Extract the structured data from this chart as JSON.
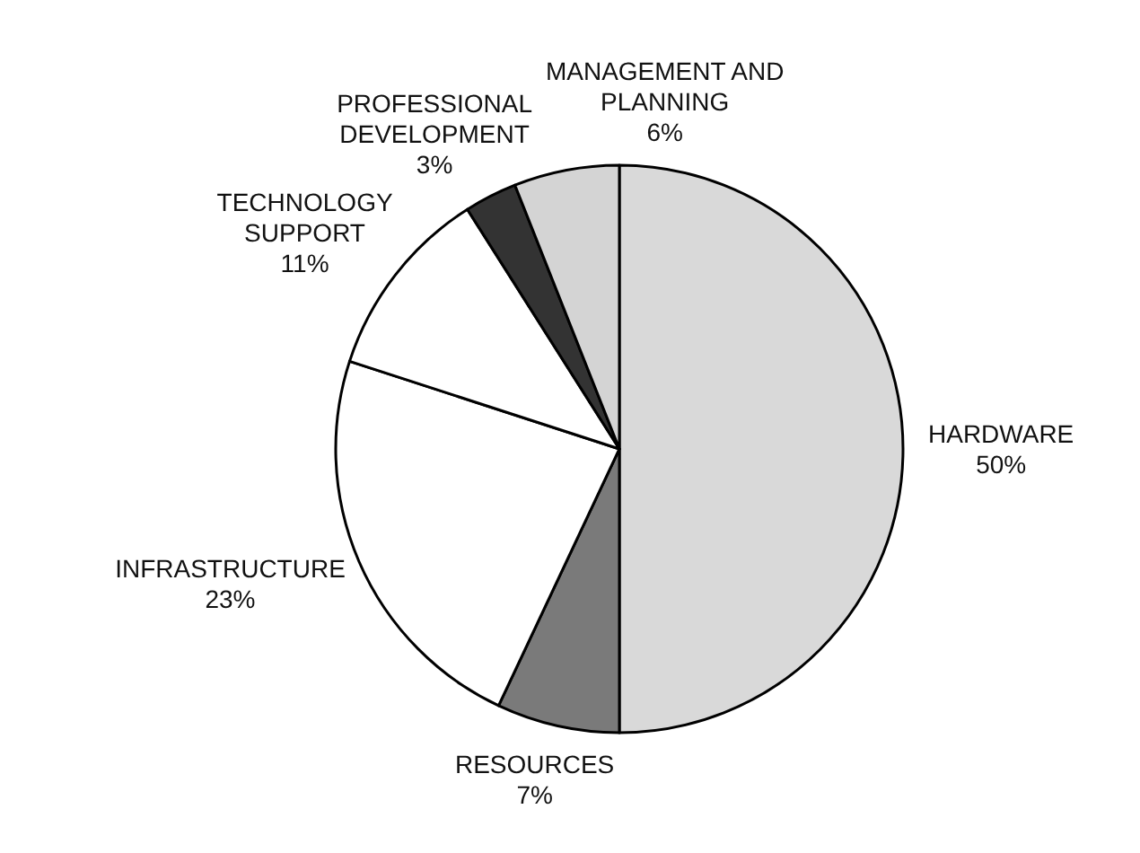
{
  "chart_data": {
    "type": "pie",
    "categories": [
      "HARDWARE",
      "RESOURCES",
      "INFRASTRUCTURE",
      "TECHNOLOGY SUPPORT",
      "PROFESSIONAL DEVELOPMENT",
      "MANAGEMENT AND PLANNING"
    ],
    "values": [
      50,
      7,
      23,
      11,
      3,
      6
    ],
    "colors": [
      "#d9d9d9",
      "#7a7a7a",
      "#ffffff",
      "#ffffff",
      "#333333",
      "#d4d4d4"
    ],
    "value_labels": [
      "50%",
      "7%",
      "23%",
      "11%",
      "3%",
      "6%"
    ]
  }
}
